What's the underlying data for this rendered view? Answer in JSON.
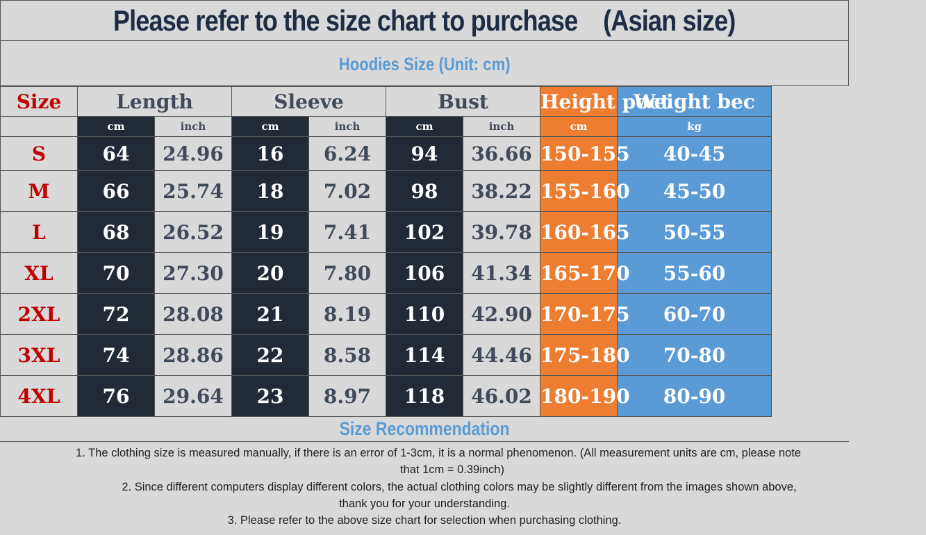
{
  "title": "Please refer to the size chart to purchase    (Asian size)",
  "subtitle": "Hoodies Size (Unit: cm)",
  "headers": {
    "size": "Size",
    "length": "Length",
    "sleeve": "Sleeve",
    "bust": "Bust",
    "height": "Height poct",
    "weight": "Weight bec"
  },
  "units": {
    "length_cm": "cm",
    "length_inch": "inch",
    "sleeve_cm": "cm",
    "sleeve_inch": "inch",
    "bust_cm": "cm",
    "bust_inch": "inch",
    "height": "cm",
    "weight": "kg"
  },
  "rows": [
    {
      "size": "S",
      "length_cm": "64",
      "length_inch": "24.96",
      "sleeve_cm": "16",
      "sleeve_inch": "6.24",
      "bust_cm": "94",
      "bust_inch": "36.66",
      "height": "150-155",
      "weight": "40-45"
    },
    {
      "size": "M",
      "length_cm": "66",
      "length_inch": "25.74",
      "sleeve_cm": "18",
      "sleeve_inch": "7.02",
      "bust_cm": "98",
      "bust_inch": "38.22",
      "height": "155-160",
      "weight": "45-50"
    },
    {
      "size": "L",
      "length_cm": "68",
      "length_inch": "26.52",
      "sleeve_cm": "19",
      "sleeve_inch": "7.41",
      "bust_cm": "102",
      "bust_inch": "39.78",
      "height": "160-165",
      "weight": "50-55"
    },
    {
      "size": "XL",
      "length_cm": "70",
      "length_inch": "27.30",
      "sleeve_cm": "20",
      "sleeve_inch": "7.80",
      "bust_cm": "106",
      "bust_inch": "41.34",
      "height": "165-170",
      "weight": "55-60"
    },
    {
      "size": "2XL",
      "length_cm": "72",
      "length_inch": "28.08",
      "sleeve_cm": "21",
      "sleeve_inch": "8.19",
      "bust_cm": "110",
      "bust_inch": "42.90",
      "height": "170-175",
      "weight": "60-70"
    },
    {
      "size": "3XL",
      "length_cm": "74",
      "length_inch": "28.86",
      "sleeve_cm": "22",
      "sleeve_inch": "8.58",
      "bust_cm": "114",
      "bust_inch": "44.46",
      "height": "175-180",
      "weight": "70-80"
    },
    {
      "size": "4XL",
      "length_cm": "76",
      "length_inch": "29.64",
      "sleeve_cm": "23",
      "sleeve_inch": "8.97",
      "bust_cm": "118",
      "bust_inch": "46.02",
      "height": "180-190",
      "weight": "80-90"
    }
  ],
  "recommendation": {
    "title": "Size Recommendation",
    "note1_line1": "1. The clothing size is measured manually, if there is an error of 1-3cm, it is a normal phenomenon. (All measurement units are cm, please note",
    "note1_line2": "that 1cm = 0.39inch)",
    "note2_line1": "2. Since different computers display different colors, the actual clothing colors may be slightly different from the images shown above,",
    "note2_line2": "thank you for your understanding.",
    "note3": "3. Please refer to the above size chart for selection when purchasing clothing."
  },
  "colors": {
    "title_text": "#1f2d44",
    "accent_blue": "#5b9bd5",
    "accent_orange": "#ed7d31",
    "dark_cell": "#222a35",
    "size_red": "#c00000",
    "background": "#d9d9d9"
  }
}
